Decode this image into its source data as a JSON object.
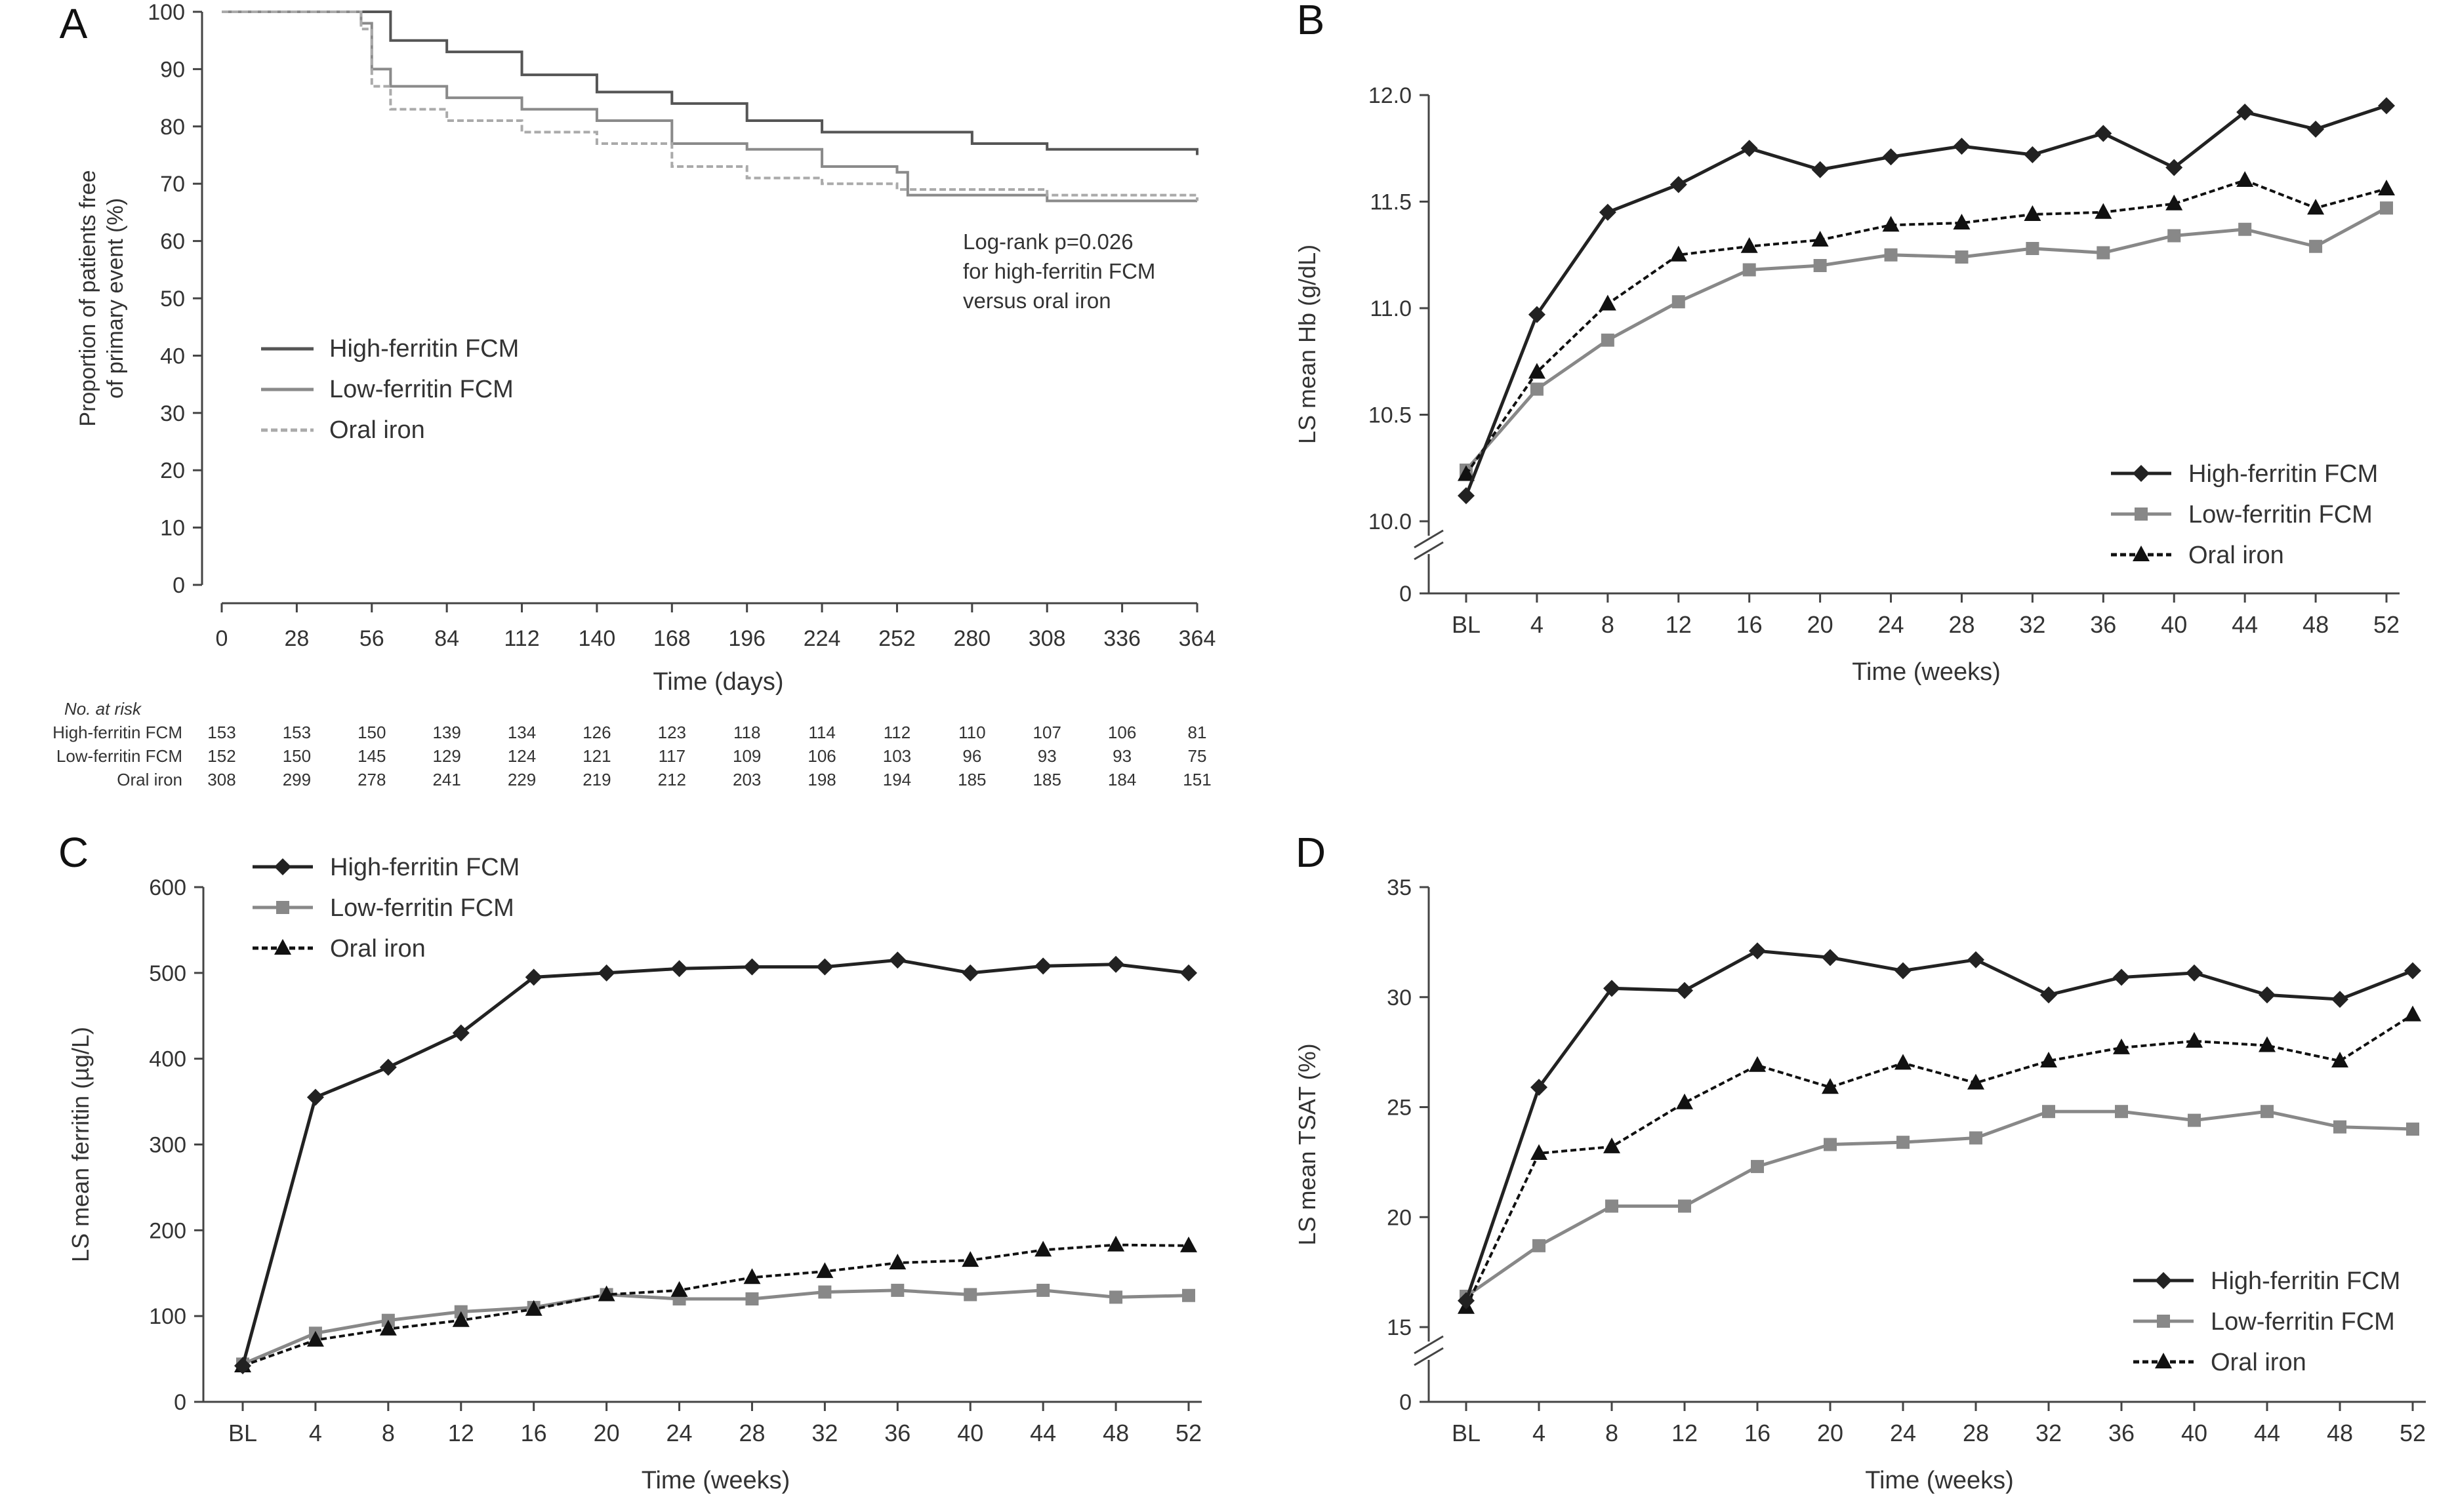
{
  "chart_data": [
    {
      "panel": "A",
      "type": "line",
      "subtype": "kaplan-meier",
      "ylabel": [
        "Proportion of patients free",
        "of primary event (%)"
      ],
      "xlabel": "Time (days)",
      "xlim": [
        0,
        364
      ],
      "ylim": [
        0,
        100
      ],
      "xticks": [
        0,
        28,
        56,
        84,
        112,
        140,
        168,
        196,
        224,
        252,
        280,
        308,
        336,
        364
      ],
      "yticks": [
        0,
        10,
        20,
        30,
        40,
        50,
        60,
        70,
        80,
        90,
        100
      ],
      "legend_position": "middle-left",
      "annotation": [
        "Log-rank p=0.026",
        "for high-ferritin FCM",
        "versus oral iron"
      ],
      "series": [
        {
          "name": "High-ferritin FCM",
          "color": "#555555",
          "style": "solid",
          "points": [
            [
              0,
              100
            ],
            [
              56,
              100
            ],
            [
              63,
              95
            ],
            [
              84,
              93
            ],
            [
              112,
              89
            ],
            [
              140,
              86
            ],
            [
              168,
              84
            ],
            [
              196,
              81
            ],
            [
              224,
              79
            ],
            [
              252,
              79
            ],
            [
              280,
              77
            ],
            [
              308,
              76
            ],
            [
              336,
              76
            ],
            [
              364,
              75
            ]
          ]
        },
        {
          "name": "Low-ferritin FCM",
          "color": "#8a8a8a",
          "style": "solid",
          "points": [
            [
              0,
              100
            ],
            [
              52,
              98
            ],
            [
              56,
              90
            ],
            [
              63,
              87
            ],
            [
              84,
              85
            ],
            [
              112,
              83
            ],
            [
              140,
              81
            ],
            [
              168,
              77
            ],
            [
              196,
              76
            ],
            [
              224,
              73
            ],
            [
              252,
              72
            ],
            [
              256,
              68
            ],
            [
              280,
              68
            ],
            [
              308,
              67
            ],
            [
              336,
              67
            ],
            [
              364,
              67
            ]
          ]
        },
        {
          "name": "Oral iron",
          "color": "#aaaaaa",
          "style": "dashed",
          "points": [
            [
              0,
              100
            ],
            [
              52,
              97
            ],
            [
              56,
              87
            ],
            [
              63,
              83
            ],
            [
              84,
              81
            ],
            [
              112,
              79
            ],
            [
              140,
              77
            ],
            [
              168,
              73
            ],
            [
              196,
              71
            ],
            [
              224,
              70
            ],
            [
              252,
              69
            ],
            [
              280,
              69
            ],
            [
              308,
              68
            ],
            [
              336,
              68
            ],
            [
              364,
              67
            ]
          ]
        }
      ],
      "risk_table": {
        "title": "No. at risk",
        "rows": [
          {
            "label": "High-ferritin FCM",
            "values": [
              "153",
              "153",
              "150",
              "139",
              "134",
              "126",
              "123",
              "118",
              "114",
              "112",
              "110",
              "107",
              "106",
              "81"
            ]
          },
          {
            "label": "Low-ferritin FCM",
            "values": [
              "152",
              "150",
              "145",
              "129",
              "124",
              "121",
              "117",
              "109",
              "106",
              "103",
              "96",
              "93",
              "93",
              "75"
            ]
          },
          {
            "label": "Oral iron",
            "values": [
              "308",
              "299",
              "278",
              "241",
              "229",
              "219",
              "212",
              "203",
              "198",
              "194",
              "185",
              "185",
              "184",
              "151"
            ]
          }
        ]
      }
    },
    {
      "panel": "B",
      "type": "line",
      "ylabel": "LS mean Hb (g/dL)",
      "xlabel": "Time (weeks)",
      "categories": [
        "BL",
        "4",
        "8",
        "12",
        "16",
        "20",
        "24",
        "28",
        "32",
        "36",
        "40",
        "44",
        "48",
        "52"
      ],
      "ylim": [
        10.0,
        12.0
      ],
      "yticks": [
        "10.0",
        "10.5",
        "11.0",
        "11.5",
        "12.0"
      ],
      "axis_break_label": "0",
      "legend_position": "bottom-right",
      "series": [
        {
          "name": "High-ferritin FCM",
          "marker": "diamond",
          "color": "#222222",
          "style": "solid",
          "values": [
            10.12,
            10.97,
            11.45,
            11.58,
            11.75,
            11.65,
            11.71,
            11.76,
            11.72,
            11.82,
            11.66,
            11.92,
            11.84,
            11.95
          ]
        },
        {
          "name": "Low-ferritin FCM",
          "marker": "square",
          "color": "#888888",
          "style": "solid",
          "values": [
            10.24,
            10.62,
            10.85,
            11.03,
            11.18,
            11.2,
            11.25,
            11.24,
            11.28,
            11.26,
            11.34,
            11.37,
            11.29,
            11.47
          ]
        },
        {
          "name": "Oral iron",
          "marker": "triangle",
          "color": "#111111",
          "style": "dashed",
          "values": [
            10.22,
            10.7,
            11.02,
            11.25,
            11.29,
            11.32,
            11.39,
            11.4,
            11.44,
            11.45,
            11.49,
            11.6,
            11.47,
            11.56
          ]
        }
      ]
    },
    {
      "panel": "C",
      "type": "line",
      "ylabel": "LS mean ferritin (µg/L)",
      "xlabel": "Time (weeks)",
      "categories": [
        "BL",
        "4",
        "8",
        "12",
        "16",
        "20",
        "24",
        "28",
        "32",
        "36",
        "40",
        "44",
        "48",
        "52"
      ],
      "ylim": [
        0,
        600
      ],
      "yticks": [
        "0",
        "100",
        "200",
        "300",
        "400",
        "500",
        "600"
      ],
      "legend_position": "top-left",
      "series": [
        {
          "name": "High-ferritin FCM",
          "marker": "diamond",
          "color": "#222222",
          "style": "solid",
          "values": [
            42,
            355,
            390,
            430,
            495,
            500,
            505,
            507,
            507,
            515,
            500,
            508,
            510,
            500
          ]
        },
        {
          "name": "Low-ferritin FCM",
          "marker": "square",
          "color": "#888888",
          "style": "solid",
          "values": [
            44,
            80,
            95,
            105,
            110,
            125,
            120,
            120,
            128,
            130,
            125,
            130,
            122,
            124
          ]
        },
        {
          "name": "Oral iron",
          "marker": "triangle",
          "color": "#111111",
          "style": "dashed",
          "values": [
            42,
            72,
            85,
            95,
            108,
            125,
            130,
            145,
            152,
            162,
            165,
            177,
            183,
            182
          ]
        }
      ]
    },
    {
      "panel": "D",
      "type": "line",
      "ylabel": "LS mean TSAT (%)",
      "xlabel": "Time (weeks)",
      "categories": [
        "BL",
        "4",
        "8",
        "12",
        "16",
        "20",
        "24",
        "28",
        "32",
        "36",
        "40",
        "44",
        "48",
        "52"
      ],
      "ylim": [
        15,
        35
      ],
      "yticks": [
        "15",
        "20",
        "25",
        "30",
        "35"
      ],
      "axis_break_label": "0",
      "legend_position": "bottom-right",
      "series": [
        {
          "name": "High-ferritin FCM",
          "marker": "diamond",
          "color": "#222222",
          "style": "solid",
          "values": [
            16.2,
            25.9,
            30.4,
            30.3,
            32.1,
            31.8,
            31.2,
            31.7,
            30.1,
            30.9,
            31.1,
            30.1,
            29.9,
            31.2
          ]
        },
        {
          "name": "Low-ferritin FCM",
          "marker": "square",
          "color": "#888888",
          "style": "solid",
          "values": [
            16.4,
            18.7,
            20.5,
            20.5,
            22.3,
            23.3,
            23.4,
            23.6,
            24.8,
            24.8,
            24.4,
            24.8,
            24.1,
            24.0
          ]
        },
        {
          "name": "Oral iron",
          "marker": "triangle",
          "color": "#111111",
          "style": "dashed",
          "values": [
            15.9,
            22.9,
            23.2,
            25.2,
            26.9,
            25.9,
            27.0,
            26.1,
            27.1,
            27.7,
            28.0,
            27.8,
            27.1,
            29.2
          ]
        }
      ]
    }
  ]
}
